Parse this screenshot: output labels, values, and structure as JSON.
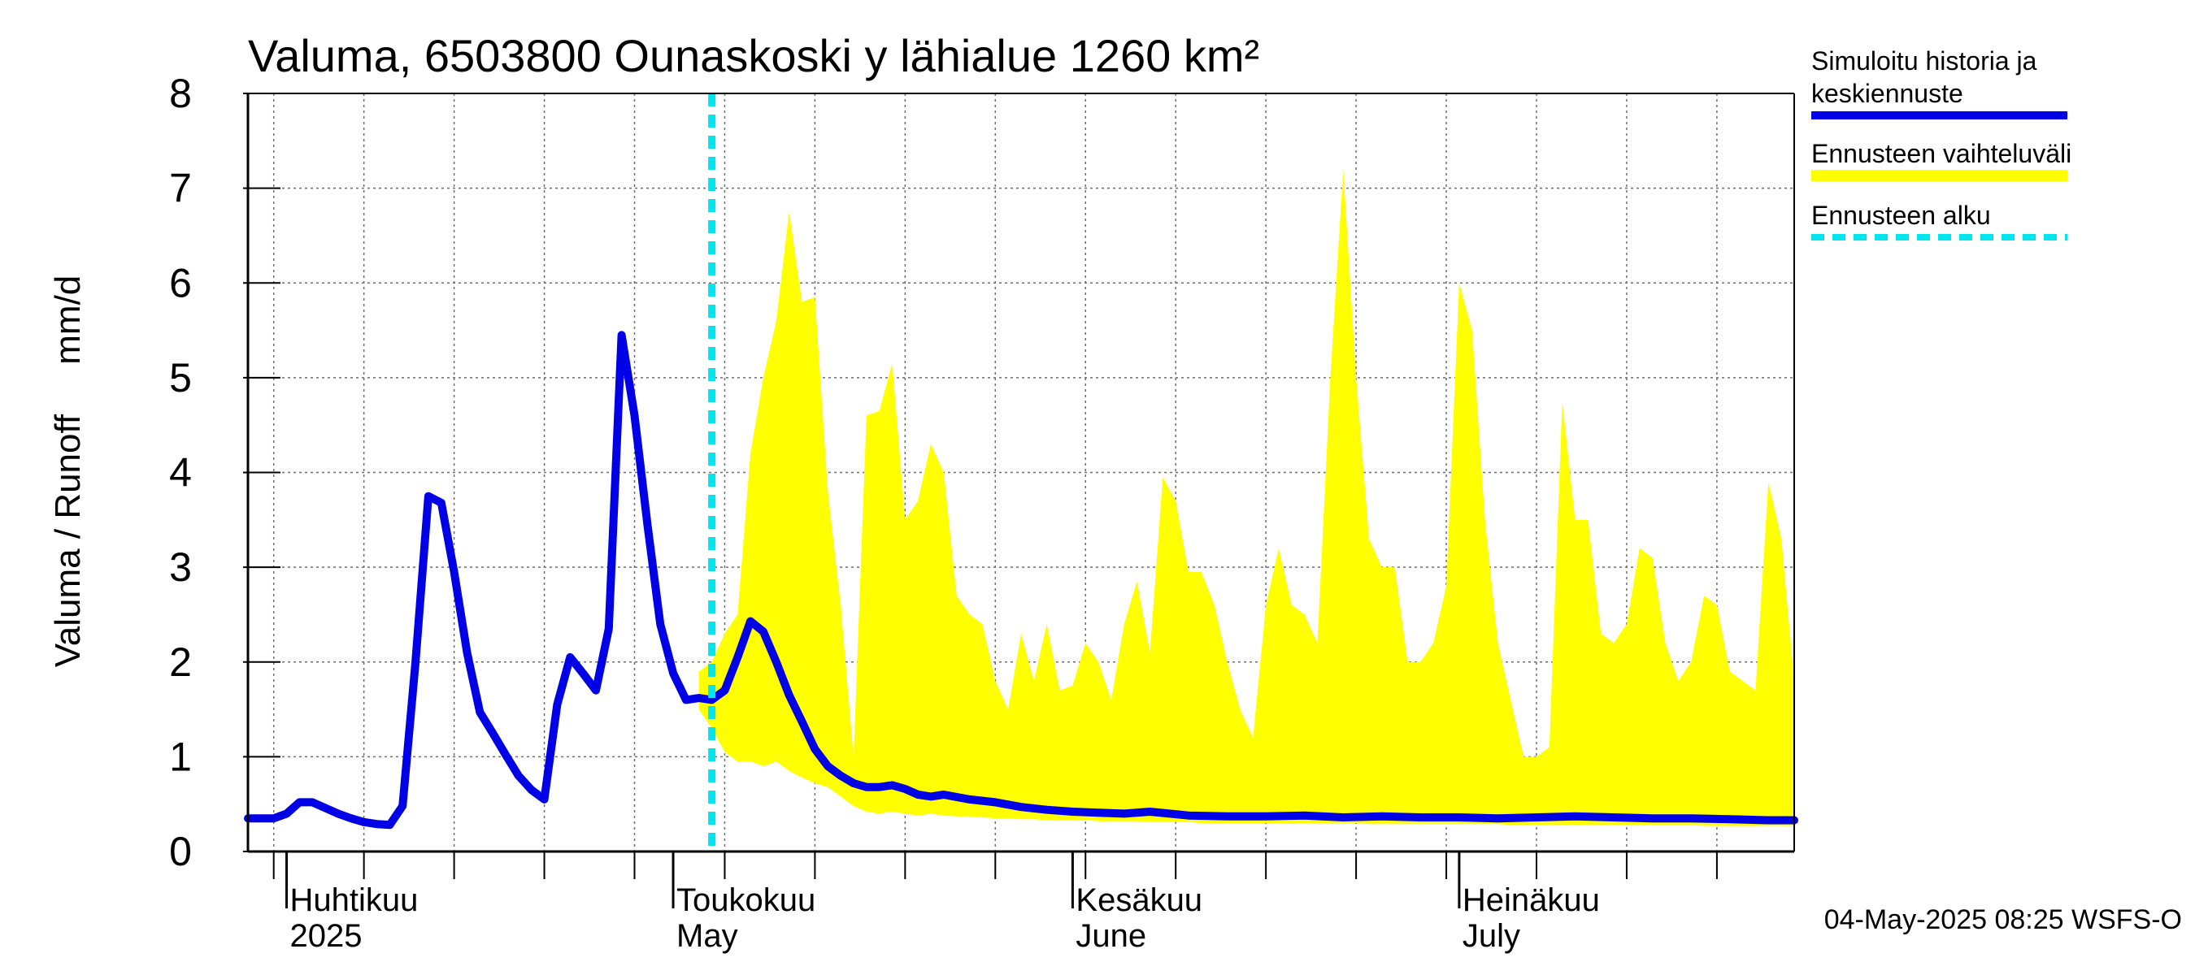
{
  "chart_data": {
    "type": "area",
    "title": "Valuma, 6503800 Ounaskoski y lähialue 1260 km²",
    "ylabel": "Valuma / Runoff     mm/d",
    "ylim": [
      0,
      8
    ],
    "yticks": [
      "0",
      "1",
      "2",
      "3",
      "4",
      "5",
      "6",
      "7",
      "8"
    ],
    "xlim": [
      "2025-03-29",
      "2025-07-27"
    ],
    "grid": true,
    "legend_position": "right",
    "month_labels": [
      {
        "date": "2025-04-01",
        "line1": "Huhtikuu",
        "line2": "2025"
      },
      {
        "date": "2025-05-01",
        "line1": "Toukokuu",
        "line2": "May"
      },
      {
        "date": "2025-06-01",
        "line1": "Kesäkuu",
        "line2": "June"
      },
      {
        "date": "2025-07-01",
        "line1": "Heinäkuu",
        "line2": "July"
      }
    ],
    "forecast_start": "2025-05-04",
    "series": [
      {
        "name": "Simuloitu historia ja keskiennuste",
        "color": "#0000e6",
        "x": [
          "2025-03-29",
          "2025-03-30",
          "2025-03-31",
          "2025-04-01",
          "2025-04-02",
          "2025-04-03",
          "2025-04-04",
          "2025-04-05",
          "2025-04-06",
          "2025-04-07",
          "2025-04-08",
          "2025-04-09",
          "2025-04-10",
          "2025-04-11",
          "2025-04-12",
          "2025-04-13",
          "2025-04-14",
          "2025-04-15",
          "2025-04-16",
          "2025-04-17",
          "2025-04-18",
          "2025-04-19",
          "2025-04-20",
          "2025-04-21",
          "2025-04-22",
          "2025-04-23",
          "2025-04-24",
          "2025-04-25",
          "2025-04-26",
          "2025-04-27",
          "2025-04-28",
          "2025-04-29",
          "2025-04-30",
          "2025-05-01",
          "2025-05-02",
          "2025-05-03",
          "2025-05-04",
          "2025-05-05",
          "2025-05-06",
          "2025-05-07",
          "2025-05-08",
          "2025-05-09",
          "2025-05-10",
          "2025-05-11",
          "2025-05-12",
          "2025-05-13",
          "2025-05-14",
          "2025-05-15",
          "2025-05-16",
          "2025-05-17",
          "2025-05-18",
          "2025-05-19",
          "2025-05-20",
          "2025-05-21",
          "2025-05-22",
          "2025-05-24",
          "2025-05-26",
          "2025-05-28",
          "2025-05-30",
          "2025-06-01",
          "2025-06-03",
          "2025-06-05",
          "2025-06-07",
          "2025-06-10",
          "2025-06-13",
          "2025-06-16",
          "2025-06-19",
          "2025-06-22",
          "2025-06-25",
          "2025-06-28",
          "2025-07-01",
          "2025-07-04",
          "2025-07-07",
          "2025-07-10",
          "2025-07-13",
          "2025-07-16",
          "2025-07-19",
          "2025-07-22",
          "2025-07-25",
          "2025-07-27"
        ],
        "y": [
          0.35,
          0.35,
          0.35,
          0.4,
          0.52,
          0.52,
          0.46,
          0.4,
          0.35,
          0.31,
          0.29,
          0.28,
          0.48,
          2.0,
          3.75,
          3.68,
          2.95,
          2.1,
          1.47,
          1.25,
          1.02,
          0.8,
          0.65,
          0.55,
          1.55,
          2.05,
          1.88,
          1.7,
          2.35,
          5.45,
          4.6,
          3.45,
          2.4,
          1.88,
          1.6,
          1.62,
          1.6,
          1.7,
          2.05,
          2.43,
          2.32,
          2.0,
          1.65,
          1.37,
          1.08,
          0.9,
          0.8,
          0.72,
          0.68,
          0.68,
          0.7,
          0.66,
          0.6,
          0.58,
          0.6,
          0.55,
          0.52,
          0.47,
          0.44,
          0.42,
          0.41,
          0.4,
          0.42,
          0.38,
          0.37,
          0.37,
          0.38,
          0.36,
          0.37,
          0.36,
          0.36,
          0.35,
          0.36,
          0.37,
          0.36,
          0.35,
          0.35,
          0.34,
          0.33,
          0.33
        ]
      },
      {
        "name": "Ennusteen vaihteluväli",
        "color": "#ffff00",
        "x": [
          "2025-05-03",
          "2025-05-04",
          "2025-05-05",
          "2025-05-06",
          "2025-05-07",
          "2025-05-08",
          "2025-05-09",
          "2025-05-10",
          "2025-05-11",
          "2025-05-12",
          "2025-05-13",
          "2025-05-14",
          "2025-05-15",
          "2025-05-16",
          "2025-05-17",
          "2025-05-18",
          "2025-05-19",
          "2025-05-20",
          "2025-05-21",
          "2025-05-22",
          "2025-05-23",
          "2025-05-24",
          "2025-05-25",
          "2025-05-26",
          "2025-05-27",
          "2025-05-28",
          "2025-05-29",
          "2025-05-30",
          "2025-05-31",
          "2025-06-01",
          "2025-06-02",
          "2025-06-03",
          "2025-06-04",
          "2025-06-05",
          "2025-06-06",
          "2025-06-07",
          "2025-06-08",
          "2025-06-09",
          "2025-06-10",
          "2025-06-11",
          "2025-06-12",
          "2025-06-13",
          "2025-06-14",
          "2025-06-15",
          "2025-06-16",
          "2025-06-17",
          "2025-06-18",
          "2025-06-19",
          "2025-06-20",
          "2025-06-21",
          "2025-06-22",
          "2025-06-23",
          "2025-06-24",
          "2025-06-25",
          "2025-06-26",
          "2025-06-27",
          "2025-06-28",
          "2025-06-29",
          "2025-06-30",
          "2025-07-01",
          "2025-07-02",
          "2025-07-03",
          "2025-07-04",
          "2025-07-05",
          "2025-07-06",
          "2025-07-07",
          "2025-07-08",
          "2025-07-09",
          "2025-07-10",
          "2025-07-11",
          "2025-07-12",
          "2025-07-13",
          "2025-07-14",
          "2025-07-15",
          "2025-07-16",
          "2025-07-17",
          "2025-07-18",
          "2025-07-19",
          "2025-07-20",
          "2025-07-21",
          "2025-07-22",
          "2025-07-23",
          "2025-07-24",
          "2025-07-25",
          "2025-07-26",
          "2025-07-27"
        ],
        "upper": [
          1.9,
          2.0,
          2.3,
          2.5,
          4.2,
          5.0,
          5.6,
          6.75,
          5.8,
          5.85,
          3.8,
          2.6,
          1.0,
          4.6,
          4.65,
          5.15,
          3.5,
          3.7,
          4.3,
          4.0,
          2.7,
          2.5,
          2.4,
          1.8,
          1.5,
          2.3,
          1.8,
          2.4,
          1.7,
          1.75,
          2.2,
          2.0,
          1.6,
          2.4,
          2.85,
          2.1,
          3.95,
          3.7,
          2.95,
          2.95,
          2.6,
          2.0,
          1.5,
          1.2,
          2.6,
          3.2,
          2.6,
          2.5,
          2.2,
          5.0,
          7.2,
          5.0,
          3.3,
          3.0,
          3.0,
          2.0,
          2.0,
          2.2,
          2.8,
          6.0,
          5.5,
          3.5,
          2.2,
          1.6,
          1.0,
          1.0,
          1.1,
          4.75,
          3.5,
          3.5,
          2.3,
          2.2,
          2.4,
          3.2,
          3.1,
          2.2,
          1.8,
          2.0,
          2.7,
          2.6,
          1.9,
          1.8,
          1.7,
          3.9,
          3.3,
          1.8
        ],
        "lower": [
          1.5,
          1.3,
          1.05,
          0.95,
          0.95,
          0.9,
          0.95,
          0.85,
          0.78,
          0.72,
          0.68,
          0.58,
          0.48,
          0.42,
          0.4,
          0.42,
          0.4,
          0.38,
          0.4,
          0.38,
          0.37,
          0.37,
          0.36,
          0.35,
          0.35,
          0.34,
          0.34,
          0.33,
          0.33,
          0.33,
          0.33,
          0.32,
          0.32,
          0.32,
          0.32,
          0.31,
          0.31,
          0.31,
          0.31,
          0.3,
          0.3,
          0.3,
          0.3,
          0.3,
          0.3,
          0.3,
          0.3,
          0.3,
          0.3,
          0.3,
          0.3,
          0.3,
          0.29,
          0.29,
          0.29,
          0.29,
          0.29,
          0.29,
          0.29,
          0.29,
          0.29,
          0.29,
          0.29,
          0.28,
          0.28,
          0.28,
          0.28,
          0.28,
          0.28,
          0.28,
          0.28,
          0.28,
          0.28,
          0.28,
          0.28,
          0.28,
          0.28,
          0.28,
          0.27,
          0.27,
          0.27,
          0.27,
          0.27,
          0.27,
          0.27,
          0.27
        ]
      },
      {
        "name": "Ennusteen alku",
        "color": "#00e5ee"
      }
    ]
  },
  "legend": {
    "line1": "Simuloitu historia ja",
    "line2": "keskiennuste",
    "range": "Ennusteen vaihteluväli",
    "start": "Ennusteen alku"
  },
  "footer": "04-May-2025 08:25 WSFS-O"
}
